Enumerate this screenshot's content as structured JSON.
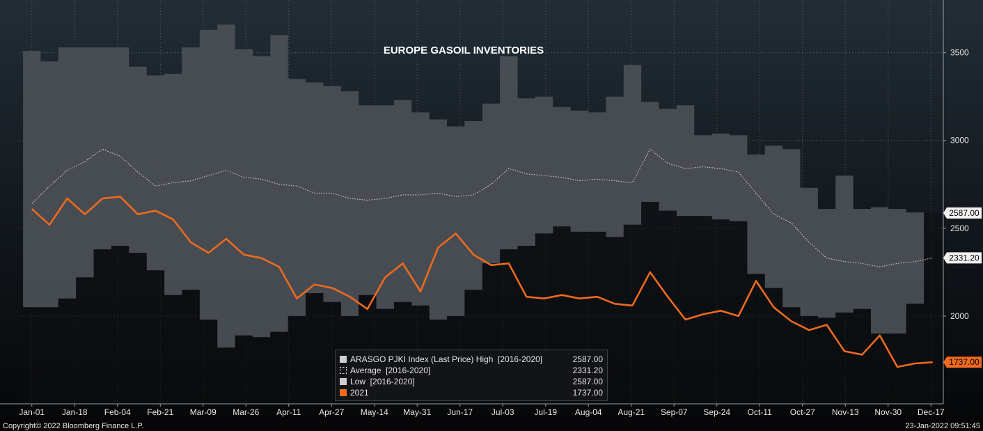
{
  "chart_data": {
    "type": "area",
    "title": "EUROPE GASOIL INVENTORIES",
    "x_tick_labels": [
      "Jan-01",
      "Jan-18",
      "Feb-04",
      "Feb-21",
      "Mar-09",
      "Mar-26",
      "Apr-11",
      "Apr-27",
      "May-14",
      "May-31",
      "Jun-17",
      "Jul-03",
      "Jul-19",
      "Aug-04",
      "Aug-21",
      "Sep-07",
      "Sep-24",
      "Oct-11",
      "Oct-27",
      "Nov-13",
      "Nov-30",
      "Dec-17"
    ],
    "y_ticks": [
      2000,
      2500,
      3000,
      3500
    ],
    "ylim": [
      1500,
      3800
    ],
    "grid": true,
    "legend_position": "bottom-center",
    "weeks": [
      1,
      2,
      3,
      4,
      5,
      6,
      7,
      8,
      9,
      10,
      11,
      12,
      13,
      14,
      15,
      16,
      17,
      18,
      19,
      20,
      21,
      22,
      23,
      24,
      25,
      26,
      27,
      28,
      29,
      30,
      31,
      32,
      33,
      34,
      35,
      36,
      37,
      38,
      39,
      40,
      41,
      42,
      43,
      44,
      45,
      46,
      47,
      48,
      49,
      50,
      51,
      52
    ],
    "high": [
      3510,
      3450,
      3530,
      3530,
      3530,
      3530,
      3420,
      3370,
      3380,
      3530,
      3630,
      3660,
      3520,
      3480,
      3600,
      3350,
      3330,
      3310,
      3280,
      3200,
      3200,
      3230,
      3160,
      3120,
      3080,
      3110,
      3210,
      3480,
      3240,
      3250,
      3190,
      3170,
      3160,
      3250,
      3430,
      3220,
      3180,
      3200,
      3030,
      3040,
      3030,
      2920,
      2970,
      2950,
      2730,
      2610,
      2800,
      2610,
      2620,
      2610,
      2590,
      2587
    ],
    "low": [
      2050,
      2050,
      2100,
      2220,
      2380,
      2400,
      2360,
      2260,
      2120,
      2150,
      1980,
      1820,
      1890,
      1880,
      1910,
      2000,
      2130,
      2080,
      2000,
      2120,
      2040,
      2080,
      2060,
      1980,
      2000,
      2150,
      2300,
      2380,
      2400,
      2470,
      2510,
      2480,
      2480,
      2450,
      2520,
      2650,
      2600,
      2570,
      2570,
      2550,
      2540,
      2240,
      2160,
      2050,
      2000,
      1990,
      2020,
      2040,
      1900,
      1900,
      2070,
      2587
    ],
    "average": [
      2640,
      2740,
      2830,
      2880,
      2950,
      2910,
      2820,
      2740,
      2760,
      2770,
      2800,
      2830,
      2790,
      2780,
      2750,
      2740,
      2700,
      2700,
      2670,
      2660,
      2670,
      2690,
      2690,
      2700,
      2680,
      2690,
      2750,
      2840,
      2810,
      2800,
      2790,
      2770,
      2780,
      2770,
      2760,
      2950,
      2870,
      2840,
      2850,
      2840,
      2820,
      2700,
      2580,
      2530,
      2420,
      2330,
      2310,
      2300,
      2280,
      2300,
      2310,
      2331.2
    ],
    "series_2021": [
      2610,
      2520,
      2670,
      2580,
      2670,
      2680,
      2580,
      2600,
      2550,
      2420,
      2360,
      2440,
      2350,
      2330,
      2280,
      2100,
      2180,
      2160,
      2110,
      2040,
      2220,
      2300,
      2140,
      2390,
      2470,
      2350,
      2290,
      2300,
      2110,
      2100,
      2120,
      2100,
      2110,
      2070,
      2060,
      2250,
      2110,
      1980,
      2010,
      2030,
      2000,
      2200,
      2050,
      1970,
      1920,
      1950,
      1800,
      1780,
      1890,
      1710,
      1730,
      1737
    ],
    "series_colors": {
      "high_low_band": "#4a4f55",
      "low_fill": "#2e3236",
      "average": "#e0e0e0",
      "2021": "#ef6a1e"
    },
    "last_value_tags": [
      {
        "value": 2587,
        "label": "2587.00",
        "style": "light"
      },
      {
        "value": 2331.2,
        "label": "2331.20",
        "style": "light"
      },
      {
        "value": 1737,
        "label": "1737.00",
        "style": "orange"
      }
    ],
    "legend": [
      {
        "label": "ARASGO PJKI Index (Last Price) High  [2016-2020]",
        "value": "2587.00",
        "swatch": "solid-light"
      },
      {
        "label": "Average  [2016-2020]",
        "value": "2331.20",
        "swatch": "dotted"
      },
      {
        "label": "Low  [2016-2020]",
        "value": "2587.00",
        "swatch": "solid-light"
      },
      {
        "label": "2021",
        "value": "1737.00",
        "swatch": "orange"
      }
    ]
  },
  "footer": {
    "copyright": "Copyright© 2022 Bloomberg Finance L.P.",
    "timestamp": "23-Jan-2022 09:51:45"
  }
}
